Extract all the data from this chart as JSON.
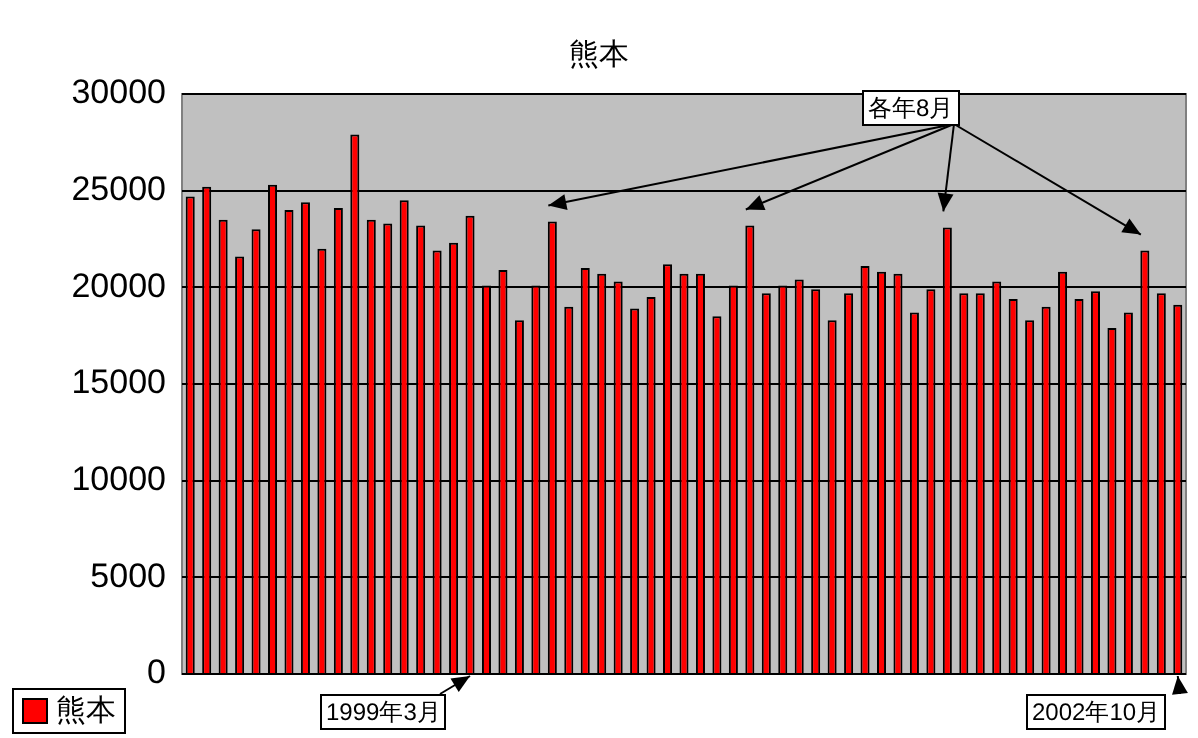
{
  "chart_data": {
    "type": "bar",
    "title": "熊本",
    "categories": [
      null,
      null,
      null,
      null,
      null,
      null,
      null,
      null,
      null,
      null,
      null,
      null,
      null,
      null,
      null,
      null,
      null,
      null,
      null,
      null,
      null,
      null,
      null,
      null,
      null,
      null,
      null,
      null,
      null,
      null,
      null,
      null,
      null,
      null,
      null,
      null,
      null,
      null,
      null,
      null,
      null,
      null,
      null,
      null,
      null,
      null,
      null,
      null,
      null,
      null,
      null,
      null,
      null,
      null,
      null,
      null,
      null,
      null,
      null,
      null,
      null
    ],
    "series": [
      {
        "name": "熊本",
        "color": "#ff0000",
        "values": [
          24700,
          25200,
          23500,
          21600,
          23000,
          25300,
          24000,
          24400,
          22000,
          24100,
          27900,
          23500,
          23300,
          24500,
          23200,
          21900,
          22300,
          23700,
          20100,
          20900,
          18300,
          20100,
          23400,
          19000,
          21000,
          20700,
          20300,
          18900,
          19500,
          21200,
          20700,
          20700,
          18500,
          20100,
          23200,
          19700,
          20100,
          20400,
          19900,
          18300,
          19700,
          21100,
          20800,
          20700,
          18700,
          19900,
          23100,
          19700,
          19700,
          20300,
          19400,
          18300,
          19000,
          20800,
          19400,
          19800,
          17900,
          18700,
          21900,
          19700,
          19100
        ]
      }
    ],
    "ylim": [
      0,
      30000
    ],
    "yticks": [
      0,
      5000,
      10000,
      15000,
      20000,
      25000,
      30000
    ],
    "grid": "y",
    "legend": "bottom left",
    "annotations": [
      "各年8月",
      "1999年3月",
      "2002年10月"
    ]
  }
}
